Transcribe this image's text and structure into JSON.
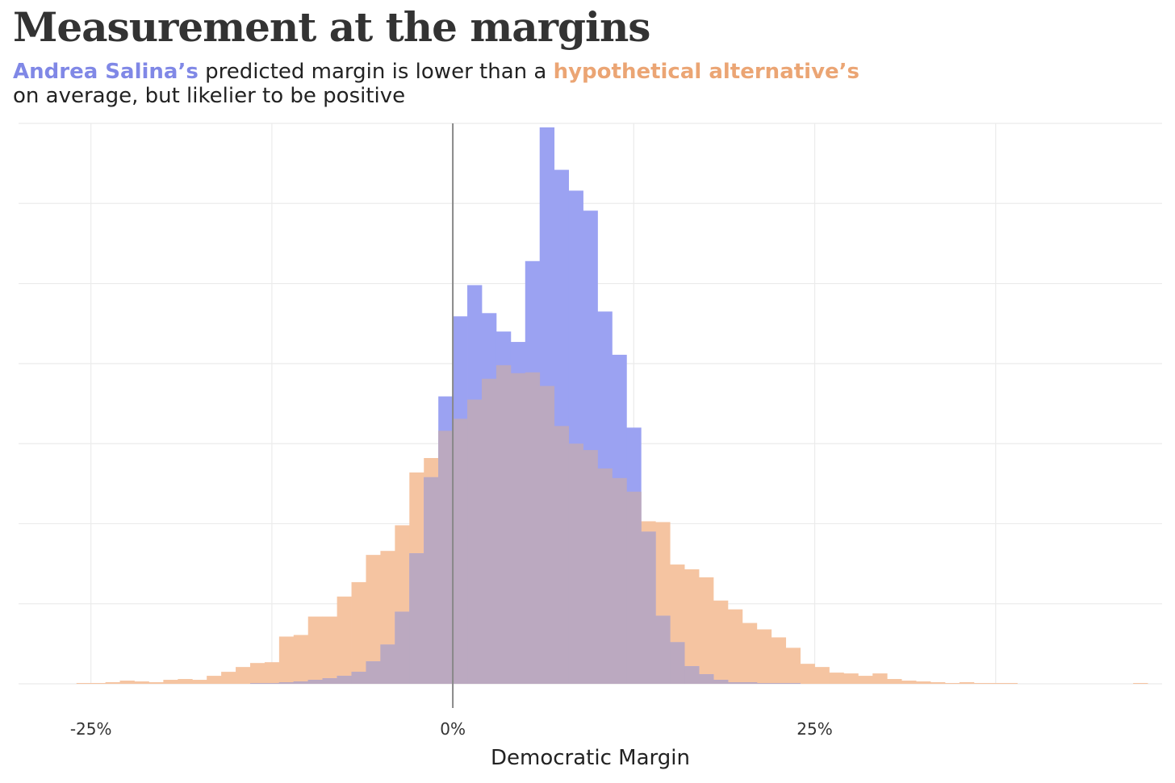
{
  "title": "Measurement at the margins",
  "subtitle": {
    "part1_highlight": "Andrea Salina’s",
    "part2": " predicted margin is lower than a ",
    "part3_highlight": "hypothetical alternative’s",
    "line2": "on average, but likelier to be positive"
  },
  "colors": {
    "salina": "#9ba2f2",
    "alternative": "#f5c4a1",
    "overlap": "#bba9c0",
    "zero_line": "#888888",
    "grid": "#ebebeb"
  },
  "chart_data": {
    "type": "histogram",
    "xlabel": "Democratic Margin",
    "ylabel": "",
    "xlim": [
      -30,
      49
    ],
    "ylim": [
      0,
      700
    ],
    "x_ticks": [
      {
        "value": -25,
        "label": "-25%"
      },
      {
        "value": 0,
        "label": "0%"
      },
      {
        "value": 25,
        "label": "25%"
      }
    ],
    "x_minor_gridlines": [
      -12.5,
      12.5,
      37.5
    ],
    "y_gridlines": [
      0,
      100,
      200,
      300,
      400,
      500,
      600,
      700
    ],
    "vline": 0,
    "bin_start": -26,
    "bin_width": 1,
    "series": [
      {
        "name": "Andrea Salina",
        "values": [
          0,
          0,
          0,
          0,
          0,
          0,
          0,
          0,
          0,
          0,
          0,
          0,
          1,
          1,
          2,
          3,
          5,
          7,
          10,
          15,
          28,
          49,
          90,
          163,
          258,
          359,
          459,
          498,
          463,
          440,
          427,
          528,
          695,
          642,
          616,
          591,
          465,
          411,
          320,
          190,
          85,
          52,
          22,
          12,
          5,
          2,
          2,
          1,
          1,
          1,
          0,
          0,
          0,
          0,
          0,
          0,
          0,
          0,
          0,
          0,
          0,
          0,
          0,
          0,
          0,
          0,
          0,
          0,
          0,
          0,
          0,
          0,
          0,
          0,
          0,
          0
        ]
      },
      {
        "name": "hypothetical alternative",
        "values": [
          1,
          1,
          2,
          4,
          3,
          2,
          5,
          6,
          5,
          10,
          15,
          21,
          26,
          27,
          59,
          61,
          84,
          84,
          109,
          127,
          161,
          166,
          198,
          264,
          282,
          316,
          331,
          355,
          381,
          398,
          388,
          389,
          372,
          322,
          300,
          292,
          269,
          257,
          240,
          203,
          202,
          149,
          143,
          133,
          104,
          93,
          76,
          68,
          58,
          45,
          25,
          21,
          14,
          13,
          10,
          13,
          6,
          4,
          3,
          2,
          1,
          2,
          1,
          1,
          1,
          0,
          0,
          0,
          0,
          0,
          0,
          0,
          0,
          1,
          0,
          0
        ]
      }
    ]
  }
}
